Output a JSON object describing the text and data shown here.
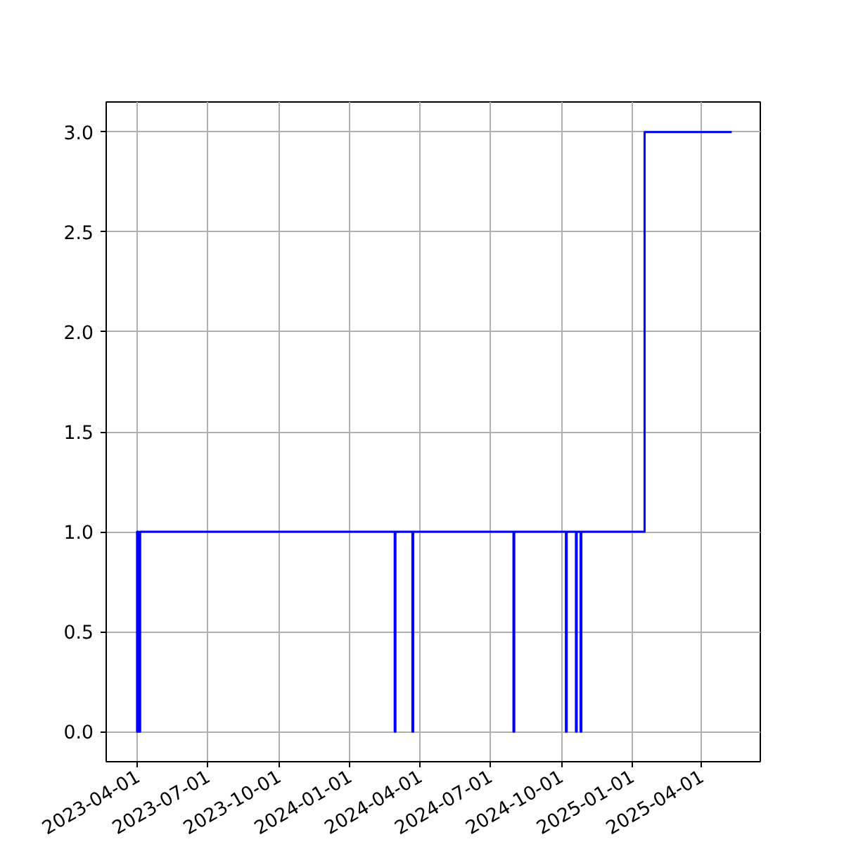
{
  "chart_data": {
    "type": "step",
    "x": [
      "2023-03-30",
      "2023-03-31",
      "2023-04-02",
      "2023-04-04",
      "2024-02-28",
      "2024-02-29",
      "2024-03-22",
      "2024-03-23",
      "2024-07-31",
      "2024-08-01",
      "2024-10-07",
      "2024-10-08",
      "2024-10-20",
      "2024-10-21",
      "2024-10-26",
      "2024-10-27",
      "2025-01-17",
      "2025-05-10"
    ],
    "series": [
      {
        "color": "#0000ff",
        "values": [
          0,
          1,
          0,
          1,
          0,
          1,
          0,
          1,
          0,
          1,
          0,
          1,
          0,
          1,
          0,
          1,
          3,
          3
        ]
      }
    ],
    "xlim": [
      "2023-02-19",
      "2025-06-16"
    ],
    "ylim": [
      -0.15,
      3.15
    ],
    "xticks": [
      "2023-04-01",
      "2023-07-01",
      "2023-10-01",
      "2024-01-01",
      "2024-04-01",
      "2024-07-01",
      "2024-10-01",
      "2025-01-01",
      "2025-04-01"
    ],
    "yticks": [
      {
        "value": 0,
        "label": "0.0"
      },
      {
        "value": 0.5,
        "label": "0.5"
      },
      {
        "value": 1,
        "label": "1.0"
      },
      {
        "value": 1.5,
        "label": "1.5"
      },
      {
        "value": 2,
        "label": "2.0"
      },
      {
        "value": 2.5,
        "label": "2.5"
      },
      {
        "value": 3,
        "label": "3.0"
      }
    ],
    "grid": true
  }
}
